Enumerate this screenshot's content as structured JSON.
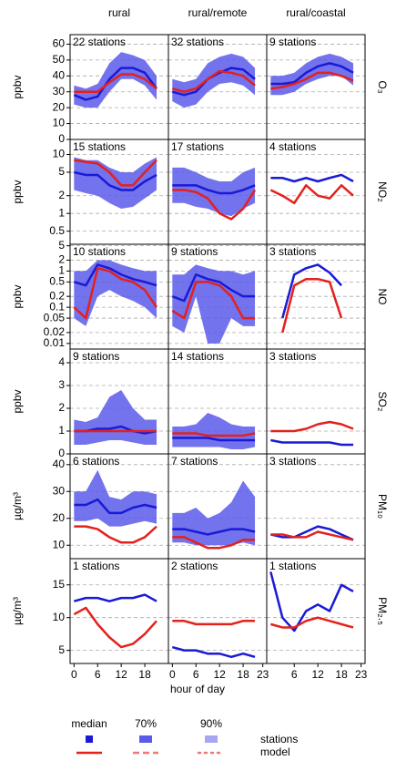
{
  "column_titles": [
    "rural",
    "rural/remote",
    "rural/coastal"
  ],
  "rows": [
    {
      "label": "O₃",
      "unit": "ppbv"
    },
    {
      "label": "NO₂",
      "unit": "ppbv"
    },
    {
      "label": "NO",
      "unit": "ppbv"
    },
    {
      "label": "SO₂",
      "unit": "ppbv"
    },
    {
      "label": "PM₁₀",
      "unit": "µg/m³"
    },
    {
      "label": "PM₂.₅",
      "unit": "µg/m³"
    }
  ],
  "x_label": "hour of day",
  "legend": {
    "columns": [
      "median",
      "70%",
      "90%"
    ],
    "rows": [
      "stations",
      "model"
    ],
    "station_color": "#1a1ad6",
    "model_color": "#e3211c",
    "band70_color": "#5b5bea",
    "band90_color": "#a6a6f2"
  },
  "chart_data": [
    {
      "type": "line",
      "text": "22 stations",
      "x": [
        0,
        3,
        6,
        9,
        12,
        15,
        18,
        21
      ],
      "xlim": [
        -1,
        24
      ],
      "ylim": [
        0,
        66
      ],
      "yticks": [
        0,
        10,
        20,
        30,
        40,
        50,
        60
      ],
      "log": false,
      "band": {
        "color": "#5b5bea",
        "lower": [
          22,
          20,
          20,
          30,
          38,
          38,
          34,
          25
        ],
        "upper": [
          34,
          32,
          35,
          48,
          55,
          53,
          50,
          40
        ]
      },
      "series": [
        {
          "color": "#1a1ad6",
          "values": [
            28,
            25,
            27,
            38,
            45,
            45,
            42,
            32
          ]
        },
        {
          "color": "#e3211c",
          "values": [
            30,
            30,
            30,
            36,
            41,
            41,
            38,
            32
          ]
        }
      ]
    },
    {
      "type": "line",
      "text": "32 stations",
      "x": [
        0,
        3,
        6,
        9,
        12,
        15,
        18,
        21
      ],
      "xlim": [
        -1,
        24
      ],
      "ylim": [
        0,
        66
      ],
      "yticks": [
        0,
        10,
        20,
        30,
        40,
        50,
        60
      ],
      "log": false,
      "band": {
        "color": "#5b5bea",
        "lower": [
          24,
          20,
          22,
          30,
          35,
          36,
          34,
          28
        ],
        "upper": [
          38,
          36,
          38,
          48,
          52,
          54,
          52,
          45
        ]
      },
      "series": [
        {
          "color": "#1a1ad6",
          "values": [
            30,
            28,
            30,
            38,
            42,
            45,
            44,
            38
          ]
        },
        {
          "color": "#e3211c",
          "values": [
            32,
            30,
            32,
            38,
            43,
            42,
            40,
            34
          ]
        }
      ]
    },
    {
      "type": "line",
      "text": "9 stations",
      "x": [
        0,
        3,
        6,
        9,
        12,
        15,
        18,
        21
      ],
      "xlim": [
        -1,
        24
      ],
      "ylim": [
        0,
        66
      ],
      "yticks": [
        0,
        10,
        20,
        30,
        40,
        50,
        60
      ],
      "log": false,
      "band": {
        "color": "#5b5bea",
        "lower": [
          28,
          28,
          30,
          35,
          38,
          40,
          40,
          34
        ],
        "upper": [
          40,
          40,
          42,
          48,
          52,
          54,
          52,
          48
        ]
      },
      "series": [
        {
          "color": "#1a1ad6",
          "values": [
            35,
            35,
            36,
            42,
            46,
            48,
            46,
            42
          ]
        },
        {
          "color": "#e3211c",
          "values": [
            32,
            33,
            35,
            38,
            42,
            42,
            40,
            37
          ]
        }
      ]
    },
    {
      "type": "line",
      "text": "15 stations",
      "x": [
        0,
        3,
        6,
        9,
        12,
        15,
        18,
        21
      ],
      "xlim": [
        -1,
        24
      ],
      "ylim": [
        0.3,
        18
      ],
      "yticks": [
        0.5,
        1,
        2,
        5,
        10
      ],
      "log": true,
      "band": {
        "color": "#5b5bea",
        "lower": [
          2.5,
          2.2,
          2,
          1.5,
          1.2,
          1.3,
          1.8,
          2.5
        ],
        "upper": [
          9,
          8,
          8,
          6,
          5,
          5,
          7,
          9
        ]
      },
      "series": [
        {
          "color": "#1a1ad6",
          "values": [
            5,
            4.5,
            4.5,
            3,
            2.5,
            2.5,
            3.5,
            4.5
          ]
        },
        {
          "color": "#e3211c",
          "values": [
            8,
            7.5,
            7,
            5,
            3,
            3,
            5,
            8
          ]
        }
      ]
    },
    {
      "type": "line",
      "text": "17 stations",
      "x": [
        0,
        3,
        6,
        9,
        12,
        15,
        18,
        21
      ],
      "xlim": [
        -1,
        24
      ],
      "ylim": [
        0.3,
        18
      ],
      "yticks": [
        0.5,
        1,
        2,
        5,
        10
      ],
      "log": true,
      "band": {
        "color": "#5b5bea",
        "lower": [
          1.5,
          1.5,
          1.3,
          1.2,
          1,
          0.9,
          1.2,
          1.5
        ],
        "upper": [
          6,
          6,
          5,
          4,
          3.5,
          3.5,
          5,
          6
        ]
      },
      "series": [
        {
          "color": "#1a1ad6",
          "values": [
            3,
            3,
            3,
            2.5,
            2.2,
            2.2,
            2.5,
            3
          ]
        },
        {
          "color": "#e3211c",
          "values": [
            2.5,
            2.5,
            2.3,
            1.8,
            1,
            0.8,
            1.2,
            2.5
          ]
        }
      ]
    },
    {
      "type": "line",
      "text": "4 stations",
      "x": [
        0,
        3,
        6,
        9,
        12,
        15,
        18,
        21
      ],
      "xlim": [
        -1,
        24
      ],
      "ylim": [
        0.3,
        18
      ],
      "yticks": [
        0.5,
        1,
        2,
        5,
        10
      ],
      "log": true,
      "series": [
        {
          "color": "#1a1ad6",
          "values": [
            4,
            4,
            3.5,
            4,
            3.5,
            4,
            4.5,
            3.5
          ]
        },
        {
          "color": "#e3211c",
          "values": [
            2.5,
            2,
            1.5,
            3,
            2,
            1.8,
            3,
            2
          ]
        }
      ]
    },
    {
      "type": "line",
      "text": "10 stations",
      "x": [
        0,
        3,
        6,
        9,
        12,
        15,
        18,
        21
      ],
      "xlim": [
        -1,
        24
      ],
      "ylim": [
        0.007,
        5.5
      ],
      "yticks": [
        0.01,
        0.02,
        0.05,
        0.1,
        0.2,
        0.5,
        1,
        2,
        5
      ],
      "log": true,
      "band": {
        "color": "#5b5bea",
        "lower": [
          0.05,
          0.03,
          0.2,
          0.3,
          0.2,
          0.15,
          0.1,
          0.05
        ],
        "upper": [
          1,
          1,
          2,
          2,
          1.5,
          1.2,
          1,
          1
        ]
      },
      "series": [
        {
          "color": "#1a1ad6",
          "values": [
            0.5,
            0.4,
            1.5,
            1.2,
            0.8,
            0.6,
            0.5,
            0.4
          ]
        },
        {
          "color": "#e3211c",
          "values": [
            0.1,
            0.05,
            1.2,
            1,
            0.6,
            0.5,
            0.3,
            0.1
          ]
        }
      ]
    },
    {
      "type": "line",
      "text": "9 stations",
      "x": [
        0,
        3,
        6,
        9,
        12,
        15,
        18,
        21
      ],
      "xlim": [
        -1,
        24
      ],
      "ylim": [
        0.007,
        5.5
      ],
      "yticks": [
        0.01,
        0.02,
        0.05,
        0.1,
        0.2,
        0.5,
        1,
        2,
        5
      ],
      "log": true,
      "band": {
        "color": "#5b5bea",
        "lower": [
          0.03,
          0.02,
          0.2,
          0.01,
          0.01,
          0.05,
          0.03,
          0.03
        ],
        "upper": [
          0.8,
          0.8,
          1.5,
          1.2,
          1,
          1,
          0.8,
          1
        ]
      },
      "series": [
        {
          "color": "#1a1ad6",
          "values": [
            0.2,
            0.15,
            0.8,
            0.6,
            0.5,
            0.3,
            0.2,
            0.2
          ]
        },
        {
          "color": "#e3211c",
          "values": [
            0.08,
            0.05,
            0.5,
            0.5,
            0.4,
            0.2,
            0.05,
            0.05
          ]
        }
      ]
    },
    {
      "type": "line",
      "text": "3 stations",
      "x": [
        0,
        3,
        6,
        9,
        12,
        15,
        18,
        21
      ],
      "xlim": [
        -1,
        24
      ],
      "ylim": [
        0.007,
        5.5
      ],
      "yticks": [
        0.01,
        0.02,
        0.05,
        0.1,
        0.2,
        0.5,
        1,
        2,
        5
      ],
      "log": true,
      "series": [
        {
          "color": "#1a1ad6",
          "values": [
            null,
            0.05,
            0.8,
            1.2,
            1.5,
            0.9,
            0.4,
            null
          ]
        },
        {
          "color": "#e3211c",
          "values": [
            null,
            0.02,
            0.4,
            0.6,
            0.6,
            0.5,
            0.05,
            null
          ]
        }
      ]
    },
    {
      "type": "line",
      "text": "9 stations",
      "x": [
        0,
        3,
        6,
        9,
        12,
        15,
        18,
        21
      ],
      "xlim": [
        -1,
        24
      ],
      "ylim": [
        0,
        4.6
      ],
      "yticks": [
        0,
        1,
        2,
        3,
        4
      ],
      "log": false,
      "band": {
        "color": "#5b5bea",
        "lower": [
          0.4,
          0.4,
          0.5,
          0.6,
          0.6,
          0.5,
          0.4,
          0.4
        ],
        "upper": [
          1.5,
          1.4,
          1.6,
          2.5,
          2.8,
          2,
          1.5,
          1.5
        ]
      },
      "series": [
        {
          "color": "#1a1ad6",
          "values": [
            1,
            1,
            1.1,
            1.1,
            1.2,
            1,
            0.9,
            1
          ]
        },
        {
          "color": "#e3211c",
          "values": [
            1,
            1,
            1,
            1,
            1,
            1,
            1,
            1
          ]
        }
      ]
    },
    {
      "type": "line",
      "text": "14 stations",
      "x": [
        0,
        3,
        6,
        9,
        12,
        15,
        18,
        21
      ],
      "xlim": [
        -1,
        24
      ],
      "ylim": [
        0,
        4.6
      ],
      "yticks": [
        0,
        1,
        2,
        3,
        4
      ],
      "log": false,
      "band": {
        "color": "#5b5bea",
        "lower": [
          0.3,
          0.3,
          0.3,
          0.3,
          0.3,
          0.2,
          0.2,
          0.3
        ],
        "upper": [
          1.2,
          1.2,
          1.3,
          1.8,
          1.6,
          1.3,
          1.2,
          1.2
        ]
      },
      "series": [
        {
          "color": "#1a1ad6",
          "values": [
            0.7,
            0.7,
            0.7,
            0.7,
            0.6,
            0.6,
            0.6,
            0.6
          ]
        },
        {
          "color": "#e3211c",
          "values": [
            0.9,
            0.9,
            0.9,
            0.8,
            0.8,
            0.8,
            0.8,
            0.9
          ]
        }
      ]
    },
    {
      "type": "line",
      "text": "3 stations",
      "x": [
        0,
        3,
        6,
        9,
        12,
        15,
        18,
        21
      ],
      "xlim": [
        -1,
        24
      ],
      "ylim": [
        0,
        4.6
      ],
      "yticks": [
        0,
        1,
        2,
        3,
        4
      ],
      "log": false,
      "series": [
        {
          "color": "#1a1ad6",
          "values": [
            0.6,
            0.5,
            0.5,
            0.5,
            0.5,
            0.5,
            0.4,
            0.4
          ]
        },
        {
          "color": "#e3211c",
          "values": [
            1,
            1,
            1,
            1.1,
            1.3,
            1.4,
            1.3,
            1.1
          ]
        }
      ]
    },
    {
      "type": "line",
      "text": "6 stations",
      "x": [
        0,
        3,
        6,
        9,
        12,
        15,
        18,
        21
      ],
      "xlim": [
        -1,
        24
      ],
      "ylim": [
        5,
        44
      ],
      "yticks": [
        10,
        20,
        30,
        40
      ],
      "log": false,
      "band": {
        "color": "#5b5bea",
        "lower": [
          19,
          19,
          20,
          17,
          17,
          18,
          19,
          18
        ],
        "upper": [
          30,
          30,
          38,
          28,
          27,
          30,
          30,
          29
        ]
      },
      "series": [
        {
          "color": "#1a1ad6",
          "values": [
            25,
            25,
            27,
            22,
            22,
            24,
            25,
            24
          ]
        },
        {
          "color": "#e3211c",
          "values": [
            17,
            17,
            16,
            13,
            11,
            11,
            13,
            17
          ]
        }
      ]
    },
    {
      "type": "line",
      "text": "7 stations",
      "x": [
        0,
        3,
        6,
        9,
        12,
        15,
        18,
        21
      ],
      "xlim": [
        -1,
        24
      ],
      "ylim": [
        5,
        44
      ],
      "yticks": [
        10,
        20,
        30,
        40
      ],
      "log": false,
      "band": {
        "color": "#5b5bea",
        "lower": [
          11,
          11,
          10,
          10,
          10,
          10,
          11,
          10
        ],
        "upper": [
          22,
          22,
          24,
          20,
          22,
          26,
          34,
          28
        ]
      },
      "series": [
        {
          "color": "#1a1ad6",
          "values": [
            16,
            16,
            15,
            14,
            15,
            16,
            16,
            15
          ]
        },
        {
          "color": "#e3211c",
          "values": [
            13,
            13,
            11,
            9,
            9,
            10,
            12,
            12
          ]
        }
      ]
    },
    {
      "type": "line",
      "text": "3 stations",
      "x": [
        0,
        3,
        6,
        9,
        12,
        15,
        18,
        21
      ],
      "xlim": [
        -1,
        24
      ],
      "ylim": [
        5,
        44
      ],
      "yticks": [
        10,
        20,
        30,
        40
      ],
      "log": false,
      "series": [
        {
          "color": "#1a1ad6",
          "values": [
            14,
            13,
            13,
            15,
            17,
            16,
            14,
            12
          ]
        },
        {
          "color": "#e3211c",
          "values": [
            14,
            14,
            13,
            13,
            15,
            14,
            13,
            12
          ]
        }
      ]
    },
    {
      "type": "line",
      "text": "1 stations",
      "x": [
        0,
        3,
        6,
        9,
        12,
        15,
        18,
        21
      ],
      "xlim": [
        -1,
        24
      ],
      "ylim": [
        3,
        19
      ],
      "yticks": [
        5,
        10,
        15
      ],
      "log": false,
      "xticks": [
        0,
        6,
        12,
        18
      ],
      "series": [
        {
          "color": "#1a1ad6",
          "values": [
            12.5,
            13,
            13,
            12.5,
            13,
            13,
            13.5,
            12.5
          ]
        },
        {
          "color": "#e3211c",
          "values": [
            10.5,
            11.5,
            9,
            7,
            5.5,
            6,
            7.5,
            9.5
          ]
        }
      ]
    },
    {
      "type": "line",
      "text": "2 stations",
      "x": [
        0,
        3,
        6,
        9,
        12,
        15,
        18,
        21
      ],
      "xlim": [
        -1,
        24
      ],
      "ylim": [
        3,
        19
      ],
      "yticks": [
        5,
        10,
        15
      ],
      "log": false,
      "xticks": [
        0,
        6,
        12,
        18,
        23
      ],
      "series": [
        {
          "color": "#1a1ad6",
          "values": [
            5.5,
            5,
            5,
            4.5,
            4.5,
            4,
            4.5,
            4
          ]
        },
        {
          "color": "#e3211c",
          "values": [
            9.5,
            9.5,
            9,
            9,
            9,
            9,
            9.5,
            9.5
          ]
        }
      ]
    },
    {
      "type": "line",
      "text": "1 stations",
      "x": [
        0,
        3,
        6,
        9,
        12,
        15,
        18,
        21
      ],
      "xlim": [
        -1,
        24
      ],
      "ylim": [
        3,
        19
      ],
      "yticks": [
        5,
        10,
        15
      ],
      "log": false,
      "xticks": [
        6,
        12,
        18,
        23
      ],
      "series": [
        {
          "color": "#1a1ad6",
          "values": [
            17,
            10,
            8,
            11,
            12,
            11,
            15,
            14
          ]
        },
        {
          "color": "#e3211c",
          "values": [
            9,
            8.5,
            8.5,
            9.5,
            10,
            9.5,
            9,
            8.5
          ]
        }
      ]
    }
  ]
}
